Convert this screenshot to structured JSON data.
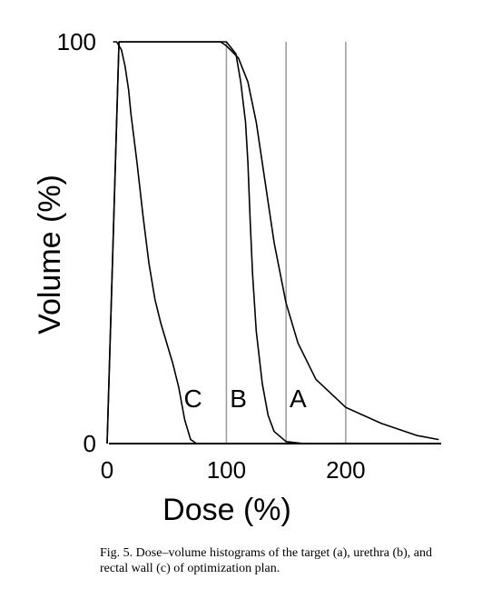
{
  "chart_data": {
    "type": "line",
    "xlabel": "Dose (%)",
    "ylabel": "Volume (%)",
    "xlim": [
      0,
      280
    ],
    "ylim": [
      0,
      100
    ],
    "xticks": [
      "0",
      "100",
      "200"
    ],
    "yticks": [
      "0",
      "100"
    ],
    "vertical_lines": [
      100,
      150,
      200
    ],
    "series": [
      {
        "name": "A",
        "x": [
          0,
          10,
          95,
          100,
          110,
          118,
          125,
          132,
          140,
          150,
          160,
          175,
          200,
          230,
          260,
          278
        ],
        "y": [
          0,
          100,
          100,
          99,
          96,
          90,
          80,
          66,
          50,
          35,
          25,
          16,
          9,
          5,
          2,
          1
        ]
      },
      {
        "name": "B",
        "x": [
          0,
          10,
          100,
          108,
          112,
          116,
          118,
          120,
          122,
          125,
          130,
          135,
          140,
          150,
          165
        ],
        "y": [
          0,
          100,
          100,
          97,
          90,
          80,
          70,
          55,
          42,
          28,
          15,
          7,
          3,
          0.5,
          0
        ]
      },
      {
        "name": "C",
        "x": [
          5,
          8,
          12,
          15,
          18,
          20,
          25,
          30,
          35,
          40,
          45,
          50,
          55,
          60,
          65,
          70,
          75
        ],
        "y": [
          100,
          100,
          98,
          94,
          88,
          82,
          70,
          57,
          45,
          36,
          30,
          25,
          20,
          14,
          6,
          1,
          0
        ]
      }
    ]
  },
  "caption": "Fig. 5. Dose–volume histograms of the target (a), urethra (b), and rectal wall (c) of optimization plan."
}
